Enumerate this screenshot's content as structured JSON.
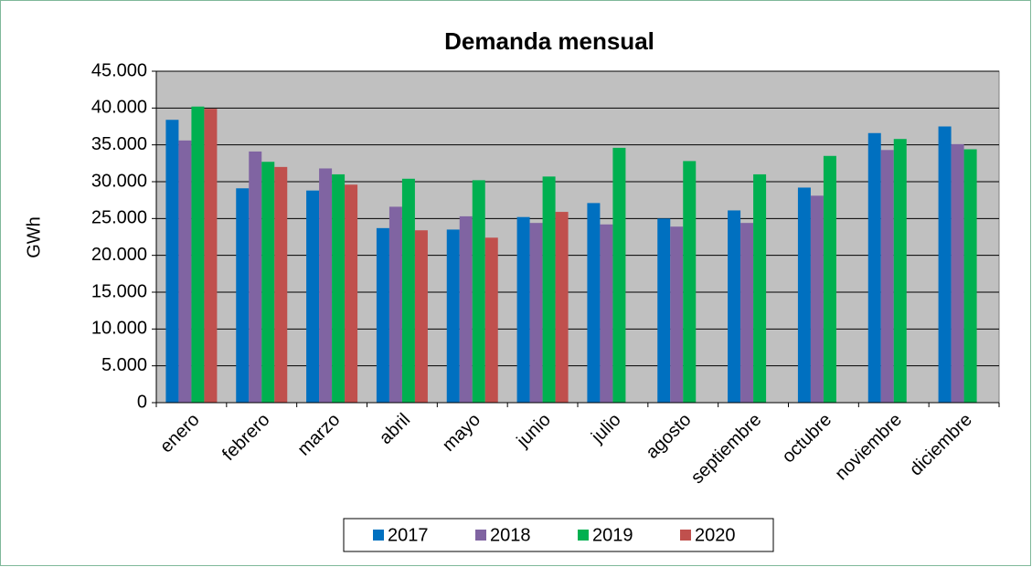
{
  "chart_data": {
    "type": "bar",
    "title": "Demanda  mensual",
    "y_label": "GWh",
    "categories": [
      "enero",
      "febrero",
      "marzo",
      "abril",
      "mayo",
      "junio",
      "julio",
      "agosto",
      "septiembre",
      "octubre",
      "noviembre",
      "diciembre"
    ],
    "series": [
      {
        "name": "2017",
        "color": "#0070c0",
        "values": [
          38400,
          29100,
          28800,
          23700,
          23500,
          25200,
          27100,
          25000,
          26100,
          29200,
          36600,
          37500
        ]
      },
      {
        "name": "2018",
        "color": "#8064a2",
        "values": [
          35600,
          34100,
          31800,
          26600,
          25300,
          24400,
          24200,
          23900,
          24400,
          28100,
          34300,
          35100
        ]
      },
      {
        "name": "2019",
        "color": "#00b050",
        "values": [
          40200,
          32700,
          31000,
          30400,
          30200,
          30700,
          34600,
          32800,
          31000,
          33500,
          35800,
          34400
        ]
      },
      {
        "name": "2020",
        "color": "#c0504d",
        "values": [
          39900,
          32000,
          29600,
          23400,
          22400,
          25900,
          null,
          null,
          null,
          null,
          null,
          null
        ]
      }
    ],
    "ylim": [
      0,
      45000
    ],
    "yticks": [
      0,
      {
        "value": 5000,
        "label": "5.000"
      },
      {
        "value": 10000,
        "label": "10.000"
      },
      {
        "value": 15000,
        "label": "15.000"
      },
      {
        "value": 20000,
        "label": "20.000"
      },
      {
        "value": 25000,
        "label": "25.000"
      },
      {
        "value": 30000,
        "label": "30.000"
      },
      {
        "value": 35000,
        "label": "35.000"
      },
      {
        "value": 40000,
        "label": "40.000"
      },
      {
        "value": 45000,
        "label": "45.000"
      }
    ],
    "grid": true,
    "legend": "bottom"
  }
}
